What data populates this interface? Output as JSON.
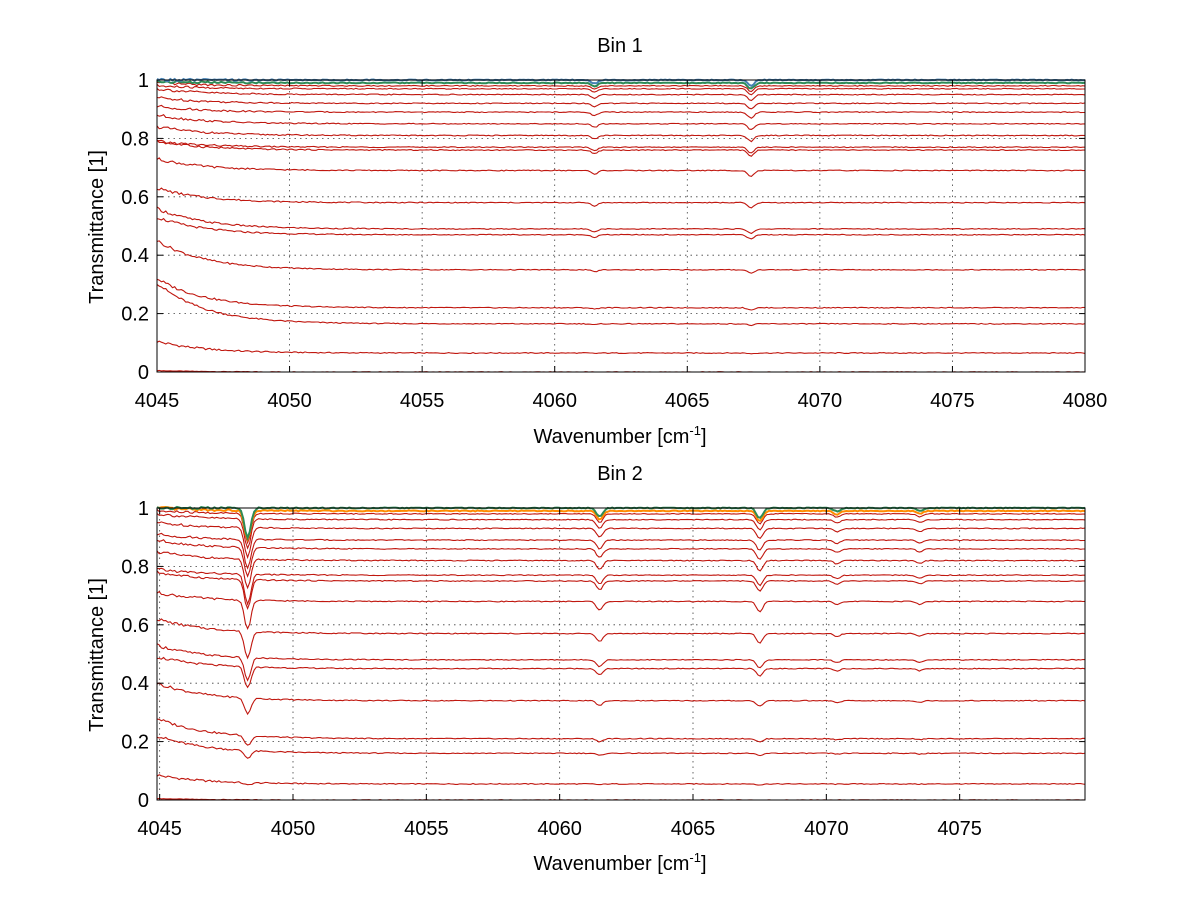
{
  "chart_data": [
    {
      "type": "line",
      "title": "Bin 1",
      "xlabel": "Wavenumber [cm",
      "xlabel_sup": "-1",
      "xlabel_end": "]",
      "ylabel": "Transmittance [1]",
      "xlim": [
        4045,
        4080
      ],
      "ylim": [
        0,
        1
      ],
      "xticks": [
        4045,
        4050,
        4055,
        4060,
        4065,
        4070,
        4075,
        4080
      ],
      "yticks": [
        0,
        0.2,
        0.4,
        0.6,
        0.8,
        1
      ],
      "grid": true,
      "series_levels": [
        0.0,
        0.065,
        0.165,
        0.22,
        0.35,
        0.47,
        0.49,
        0.58,
        0.69,
        0.76,
        0.77,
        0.81,
        0.85,
        0.89,
        0.92,
        0.95,
        0.97,
        0.98,
        0.99,
        1.0
      ],
      "start_offsets": [
        0.005,
        0.04,
        0.14,
        0.1,
        0.1,
        0.06,
        0.07,
        0.05,
        0.04,
        0.03,
        0.02,
        0.03,
        0.03,
        0.02,
        0.02,
        0.02,
        0.01,
        0.01,
        0.005,
        0.0
      ],
      "dips": [
        {
          "x": 4061.5,
          "depth": 0.012
        },
        {
          "x": 4067.4,
          "depth": 0.02
        }
      ],
      "line_color": "#c0170f",
      "top_colors": [
        "#ff4500",
        "#ff8c00",
        "#2e8b57",
        "#4682b4"
      ]
    },
    {
      "type": "line",
      "title": "Bin 2",
      "xlabel": "Wavenumber [cm",
      "xlabel_sup": "-1",
      "xlabel_end": "]",
      "ylabel": "Transmittance [1]",
      "xlim": [
        4044.9,
        4079.7
      ],
      "ylim": [
        0,
        1
      ],
      "xticks": [
        4045,
        4050,
        4055,
        4060,
        4065,
        4070,
        4075
      ],
      "yticks": [
        0,
        0.2,
        0.4,
        0.6,
        0.8,
        1
      ],
      "grid": true,
      "series_levels": [
        0.0,
        0.055,
        0.16,
        0.21,
        0.34,
        0.45,
        0.48,
        0.57,
        0.68,
        0.75,
        0.77,
        0.82,
        0.86,
        0.89,
        0.93,
        0.96,
        0.98,
        0.99,
        1.0
      ],
      "start_offsets": [
        0.005,
        0.03,
        0.06,
        0.07,
        0.06,
        0.04,
        0.05,
        0.05,
        0.03,
        0.03,
        0.02,
        0.03,
        0.03,
        0.02,
        0.02,
        0.02,
        0.01,
        0.01,
        0.0
      ],
      "dips": [
        {
          "x": 4048.3,
          "depth": 0.1
        },
        {
          "x": 4061.5,
          "depth": 0.03
        },
        {
          "x": 4067.5,
          "depth": 0.035
        },
        {
          "x": 4070.4,
          "depth": 0.012
        },
        {
          "x": 4073.5,
          "depth": 0.01
        }
      ],
      "line_color": "#c0170f",
      "top_colors": [
        "#ff4500",
        "#ff8c00",
        "#2e8b57",
        "#4682b4"
      ]
    }
  ]
}
